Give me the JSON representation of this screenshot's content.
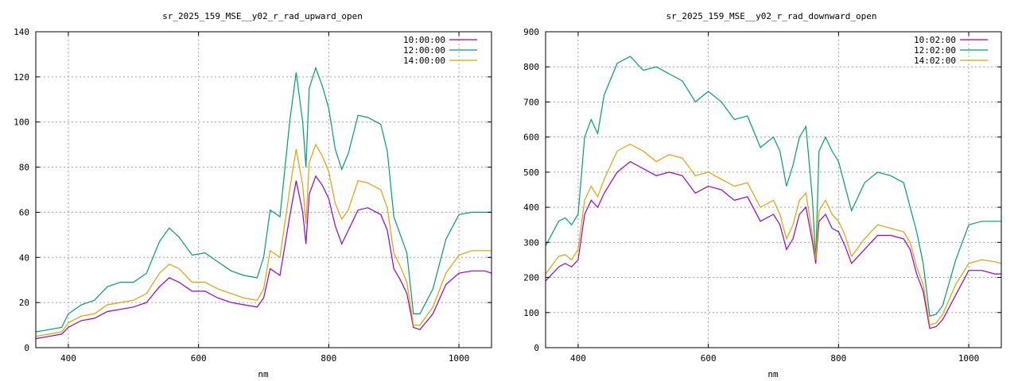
{
  "chart_data": [
    {
      "type": "line",
      "title": "sr_2025_159_MSE__y02_r_rad_upward_open",
      "xlabel": "nm",
      "ylabel": "",
      "xlim": [
        350,
        1050
      ],
      "ylim": [
        0,
        140
      ],
      "xticks": [
        400,
        600,
        800,
        1000
      ],
      "yticks": [
        0,
        20,
        40,
        60,
        80,
        100,
        120,
        140
      ],
      "grid": true,
      "legend_position": "top-right",
      "series": [
        {
          "name": "10:00:00",
          "color": "#9400d3",
          "x": [
            350,
            370,
            390,
            400,
            420,
            440,
            460,
            480,
            500,
            520,
            540,
            555,
            570,
            590,
            610,
            630,
            650,
            670,
            690,
            700,
            710,
            725,
            740,
            750,
            760,
            765,
            770,
            780,
            790,
            800,
            810,
            820,
            830,
            845,
            860,
            880,
            890,
            900,
            910,
            920,
            930,
            940,
            960,
            980,
            1000,
            1020,
            1040,
            1050
          ],
          "y": [
            4,
            5,
            6,
            9,
            12,
            13,
            16,
            17,
            18,
            20,
            27,
            31,
            29,
            25,
            25,
            22,
            20,
            19,
            18,
            22,
            35,
            32,
            58,
            74,
            60,
            46,
            68,
            76,
            72,
            66,
            54,
            46,
            52,
            61,
            62,
            59,
            52,
            35,
            30,
            24,
            9,
            8,
            15,
            28,
            33,
            34,
            34,
            33
          ]
        },
        {
          "name": "12:00:00",
          "color": "#009e73",
          "x": [
            350,
            370,
            390,
            400,
            420,
            440,
            460,
            480,
            500,
            520,
            540,
            555,
            570,
            590,
            610,
            630,
            650,
            670,
            690,
            700,
            710,
            725,
            740,
            750,
            760,
            765,
            770,
            780,
            790,
            800,
            810,
            820,
            830,
            845,
            860,
            880,
            890,
            900,
            910,
            920,
            930,
            940,
            960,
            980,
            1000,
            1020,
            1040,
            1050
          ],
          "y": [
            7,
            8,
            9,
            15,
            19,
            21,
            27,
            29,
            29,
            33,
            47,
            53,
            49,
            41,
            42,
            38,
            34,
            32,
            31,
            40,
            61,
            58,
            100,
            122,
            100,
            80,
            115,
            124,
            116,
            106,
            88,
            79,
            86,
            103,
            102,
            99,
            87,
            58,
            50,
            42,
            15,
            15,
            26,
            48,
            59,
            60,
            60,
            60
          ]
        },
        {
          "name": "14:00:00",
          "color": "#e69f00",
          "x": [
            350,
            370,
            390,
            400,
            420,
            440,
            460,
            480,
            500,
            520,
            540,
            555,
            570,
            590,
            610,
            630,
            650,
            670,
            690,
            700,
            710,
            725,
            740,
            750,
            760,
            765,
            770,
            780,
            790,
            800,
            810,
            820,
            830,
            845,
            860,
            880,
            890,
            900,
            910,
            920,
            930,
            940,
            960,
            980,
            1000,
            1020,
            1040,
            1050
          ],
          "y": [
            5,
            6,
            7,
            11,
            14,
            15,
            19,
            20,
            21,
            24,
            33,
            37,
            35,
            29,
            29,
            26,
            24,
            22,
            21,
            26,
            43,
            40,
            70,
            88,
            72,
            55,
            82,
            90,
            85,
            78,
            64,
            57,
            61,
            74,
            73,
            70,
            62,
            42,
            36,
            29,
            10,
            10,
            18,
            33,
            41,
            43,
            43,
            43
          ]
        }
      ]
    },
    {
      "type": "line",
      "title": "sr_2025_159_MSE__y02_r_rad_downward_open",
      "xlabel": "nm",
      "ylabel": "",
      "xlim": [
        350,
        1050
      ],
      "ylim": [
        0,
        900
      ],
      "xticks": [
        400,
        600,
        800,
        1000
      ],
      "yticks": [
        0,
        100,
        200,
        300,
        400,
        500,
        600,
        700,
        800,
        900
      ],
      "grid": true,
      "legend_position": "top-right",
      "series": [
        {
          "name": "10:02:00",
          "color": "#9400d3",
          "x": [
            350,
            370,
            380,
            390,
            400,
            410,
            420,
            430,
            440,
            460,
            480,
            500,
            520,
            540,
            560,
            580,
            600,
            620,
            640,
            660,
            680,
            700,
            710,
            720,
            730,
            740,
            750,
            760,
            765,
            770,
            780,
            790,
            800,
            810,
            820,
            840,
            860,
            880,
            900,
            910,
            920,
            930,
            940,
            950,
            960,
            980,
            1000,
            1020,
            1040,
            1050
          ],
          "y": [
            190,
            230,
            240,
            230,
            250,
            380,
            420,
            400,
            440,
            500,
            530,
            510,
            490,
            500,
            490,
            440,
            460,
            450,
            420,
            430,
            360,
            380,
            350,
            280,
            310,
            380,
            400,
            300,
            240,
            360,
            380,
            340,
            330,
            290,
            240,
            280,
            320,
            320,
            310,
            280,
            210,
            160,
            55,
            60,
            80,
            150,
            220,
            220,
            210,
            210
          ]
        },
        {
          "name": "12:02:00",
          "color": "#009e73",
          "x": [
            350,
            370,
            380,
            390,
            400,
            410,
            420,
            430,
            440,
            460,
            480,
            500,
            520,
            540,
            560,
            580,
            600,
            620,
            640,
            660,
            680,
            700,
            710,
            720,
            730,
            740,
            750,
            760,
            765,
            770,
            780,
            790,
            800,
            810,
            820,
            840,
            860,
            880,
            900,
            910,
            920,
            930,
            940,
            950,
            960,
            980,
            1000,
            1020,
            1040,
            1050
          ],
          "y": [
            290,
            360,
            370,
            350,
            380,
            600,
            650,
            610,
            720,
            810,
            830,
            790,
            800,
            780,
            760,
            700,
            730,
            700,
            650,
            660,
            570,
            600,
            560,
            460,
            520,
            600,
            630,
            420,
            250,
            560,
            600,
            560,
            530,
            460,
            390,
            470,
            500,
            490,
            470,
            400,
            330,
            240,
            90,
            95,
            120,
            250,
            350,
            360,
            360,
            360
          ]
        },
        {
          "name": "14:02:00",
          "color": "#e69f00",
          "x": [
            350,
            370,
            380,
            390,
            400,
            410,
            420,
            430,
            440,
            460,
            480,
            500,
            520,
            540,
            560,
            580,
            600,
            620,
            640,
            660,
            680,
            700,
            710,
            720,
            730,
            740,
            750,
            760,
            765,
            770,
            780,
            790,
            800,
            810,
            820,
            840,
            860,
            880,
            900,
            910,
            920,
            930,
            940,
            950,
            960,
            980,
            1000,
            1020,
            1040,
            1050
          ],
          "y": [
            210,
            260,
            265,
            250,
            280,
            420,
            460,
            430,
            480,
            560,
            580,
            560,
            530,
            550,
            540,
            490,
            500,
            480,
            460,
            470,
            400,
            420,
            380,
            310,
            350,
            420,
            440,
            320,
            250,
            390,
            420,
            380,
            360,
            320,
            260,
            310,
            350,
            340,
            330,
            300,
            230,
            180,
            65,
            70,
            95,
            180,
            240,
            250,
            245,
            240
          ]
        }
      ]
    }
  ]
}
